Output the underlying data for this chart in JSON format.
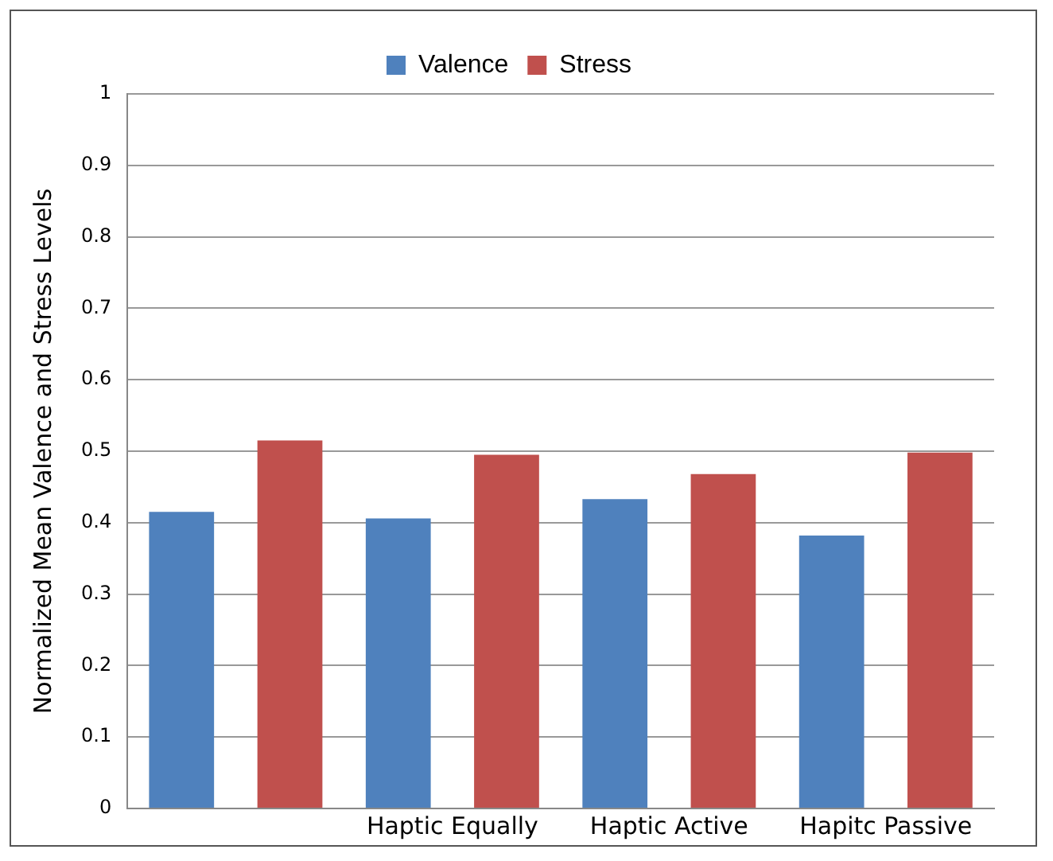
{
  "chart_data": {
    "type": "bar",
    "ylabel": "Normalized Mean Valence and Stress Levels",
    "categories": [
      null,
      "Haptic Equally",
      "Haptic Active",
      "Hapitc Passive"
    ],
    "series": [
      {
        "name": "Valence",
        "color": "#4f81bd",
        "values": [
          0.415,
          0.406,
          0.433,
          0.382
        ]
      },
      {
        "name": "Stress",
        "color": "#c0504d",
        "values": [
          0.515,
          0.495,
          0.468,
          0.498
        ]
      }
    ],
    "ylim": [
      0,
      1
    ],
    "yticks": [
      0,
      0.1,
      0.2,
      0.3,
      0.4,
      0.5,
      0.6,
      0.7,
      0.8,
      0.9,
      1
    ],
    "grid": "y",
    "legend": "top"
  }
}
